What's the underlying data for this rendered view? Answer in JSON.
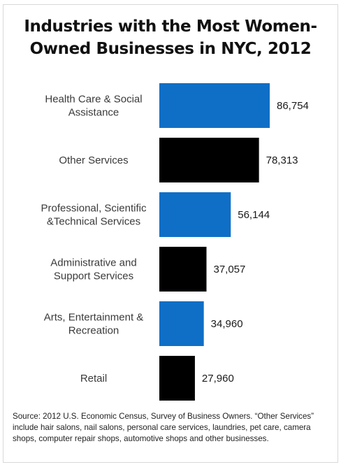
{
  "title_line1": "Industries with the Most Women-",
  "title_line2": "Owned Businesses in NYC, 2012",
  "source_note": "Source: 2012 U.S. Economic Census, Survey of Business Owners. “Other Services” include hair salons, nail salons, personal care services, laundries, pet care, camera shops, computer repair shops, automotive shops and other businesses.",
  "colors": {
    "blue": "#0f6fc6",
    "black": "#000000"
  },
  "chart_data": {
    "type": "bar",
    "orientation": "horizontal",
    "title": "Industries with the Most Women-Owned Businesses in NYC, 2012",
    "categories": [
      [
        "Health Care & Social",
        "Assistance"
      ],
      [
        "Other Services"
      ],
      [
        "Professional, Scientific",
        "&Technical Services"
      ],
      [
        "Administrative and",
        "Support Services"
      ],
      [
        "Arts, Entertainment &",
        "Recreation"
      ],
      [
        "Retail"
      ]
    ],
    "values": [
      86754,
      78313,
      56144,
      37057,
      34960,
      27960
    ],
    "value_labels": [
      "86,754",
      "78,313",
      "56,144",
      "37,057",
      "34,960",
      "27,960"
    ],
    "bar_colors": [
      "#0f6fc6",
      "#000000",
      "#0f6fc6",
      "#000000",
      "#0f6fc6",
      "#000000"
    ],
    "xlim": [
      0,
      90000
    ],
    "grid": false,
    "legend": "none"
  }
}
